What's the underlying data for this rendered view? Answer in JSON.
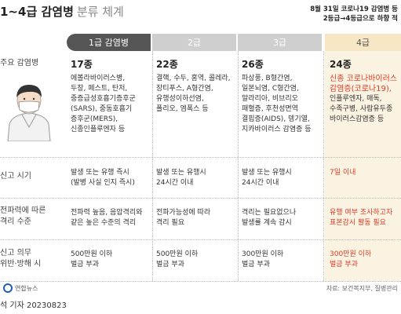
{
  "title": {
    "main": "1~4급 감염병",
    "sub": "분류 체계"
  },
  "note": {
    "line1": "8월 31일 코로나19 감염병 등",
    "line2": "2등급→4등급으로 하향 적"
  },
  "headers": [
    "1급 감염병",
    "2급",
    "3급",
    "4급"
  ],
  "row_labels": {
    "diseases": "주요 감염병",
    "report": "신고 시기",
    "isolation_1": "전파력에 따른",
    "isolation_2": "격리 수준",
    "penalty_1": "신고 의무",
    "penalty_2": "위반·방해 시"
  },
  "grade1": {
    "count": "17종",
    "diseases": [
      "에볼라바이러스병,",
      "두창, 페스트, 탄저,",
      "중증급성호흡기증후군",
      "(SARS), 중동호흡기",
      "증후군(MERS),",
      "신종인플루엔자 등"
    ],
    "report": [
      "발생 또는 유행 즉시",
      "(발병 사실 인지 즉시)"
    ],
    "isolation": [
      "전파력 높음, 음압격리와",
      "같은 높은 수준의 격리"
    ],
    "penalty": [
      "500만원 이하",
      "벌금 부과"
    ]
  },
  "grade2": {
    "count": "22종",
    "diseases": [
      "결핵, 수두, 홍역, 콜레라,",
      "장티푸스, A형간염,",
      "유행성이하선염,",
      "폴리오, 엠폭스 등"
    ],
    "report": [
      "발생 또는 유행시",
      "24시간 이내"
    ],
    "isolation": [
      "전파가능성에 따라",
      "격리 필요"
    ],
    "penalty": [
      "500만원 이하",
      "벌금 부과"
    ]
  },
  "grade3": {
    "count": "26종",
    "diseases": [
      "파상풍, B형간염,",
      "일본뇌염, C형간염,",
      "말라리아, 비브리오",
      "패혈증, 후천성면역",
      "결핍증(AIDS), 뎅기열,",
      "지카바이러스 감염증 등"
    ],
    "report": [
      "발생 또는 유행시",
      "24시간 이내"
    ],
    "isolation": [
      "격리는 필요없으나",
      "발생률 계속 감시"
    ],
    "penalty": [
      "300만원 이하",
      "벌금 부과"
    ]
  },
  "grade4": {
    "count": "24종",
    "diseases_red": [
      "신종 코로나바이러스",
      "감염증(코로나19),"
    ],
    "diseases": [
      "인플루엔자, 매독,",
      "수족구병, 사람유두종",
      "바이러스감염증 등"
    ],
    "report": [
      "7일 이내"
    ],
    "isolation": [
      "유행 여부 조사하고자",
      "표본감시 활동 필요"
    ],
    "penalty": [
      "300만원 이하",
      "벌금 부과"
    ]
  },
  "footer": {
    "logo": "연합뉴스",
    "source": "자료: 보건복지부, 질병관리",
    "credit": "석 기자 20230823"
  },
  "colors": {
    "header_dark": "#555555",
    "header_light": "#cfcfcf",
    "grade4_bg": "#fbf3e1",
    "accent_red": "#e23a2a"
  }
}
